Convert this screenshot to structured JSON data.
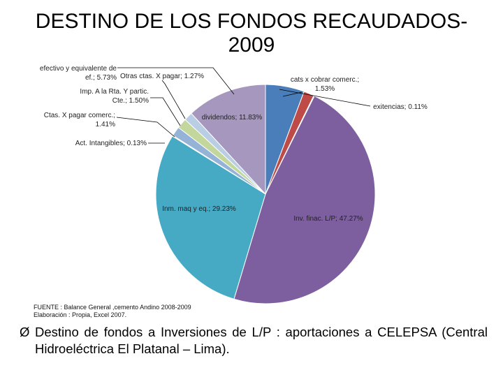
{
  "title": {
    "line1": "DESTINO DE LOS FONDOS RECAUDADOS-",
    "line2": "2009"
  },
  "chart_data": {
    "type": "pie",
    "title": "DESTINO DE LOS FONDOS RECAUDADOS-2009",
    "start_angle_deg": 0,
    "direction": "clockwise",
    "slices": [
      {
        "name": "efectivo y equivalente de ef.",
        "value": 5.73,
        "label_lines": [
          "efectivo y equivalente de",
          "ef.; 5.73%"
        ],
        "color": "#4a7ebb"
      },
      {
        "name": "cats x cobrar comerc.",
        "value": 1.53,
        "label_lines": [
          "cats x cobrar comerc.;",
          "1.53%"
        ],
        "color": "#be4b48"
      },
      {
        "name": "exitencias",
        "value": 0.11,
        "label_lines": [
          "exitencias; 0.11%"
        ],
        "color": "#98b954"
      },
      {
        "name": "Inv. finac. L/P",
        "value": 47.27,
        "label_lines": [
          "Inv. finac. L/P; 47.27%"
        ],
        "color": "#7d5fa0"
      },
      {
        "name": "Inm. maq y eq.",
        "value": 29.23,
        "label_lines": [
          "Inm. maq y eq.; 29.23%"
        ],
        "color": "#46aac5"
      },
      {
        "name": "Act. Intangibles",
        "value": 0.13,
        "label_lines": [
          "Act. Intangibles; 0.13%"
        ],
        "color": "#f79646"
      },
      {
        "name": "Ctas. X pagar comerc.",
        "value": 1.41,
        "label_lines": [
          "Ctas. X pagar comerc.;",
          "1.41%"
        ],
        "color": "#95b3d7"
      },
      {
        "name": "Imp. A la Rta. Y partic. Cte.",
        "value": 1.5,
        "label_lines": [
          "Imp. A la Rta. Y partic.",
          "Cte.; 1.50%"
        ],
        "color": "#c3d69b"
      },
      {
        "name": "Otras ctas. X pagar",
        "value": 1.27,
        "label_lines": [
          "Otras ctas. X pagar; 1.27%"
        ],
        "color": "#b9cde5"
      },
      {
        "name": "dividendos",
        "value": 11.83,
        "label_lines": [
          "dividendos; 11.83%"
        ],
        "color": "#a597bd"
      }
    ]
  },
  "source": {
    "line1": "FUENTE : Balance  General  ,cemento Andino 2008-2009",
    "line2": "Elaboración : Propia,  Excel 2007."
  },
  "bullet": {
    "arrow": "Ø",
    "text": "Destino de fondos a Inversiones de L/P : aportaciones a CELEPSA (Central Hidroeléctrica El Platanal – Lima)."
  }
}
